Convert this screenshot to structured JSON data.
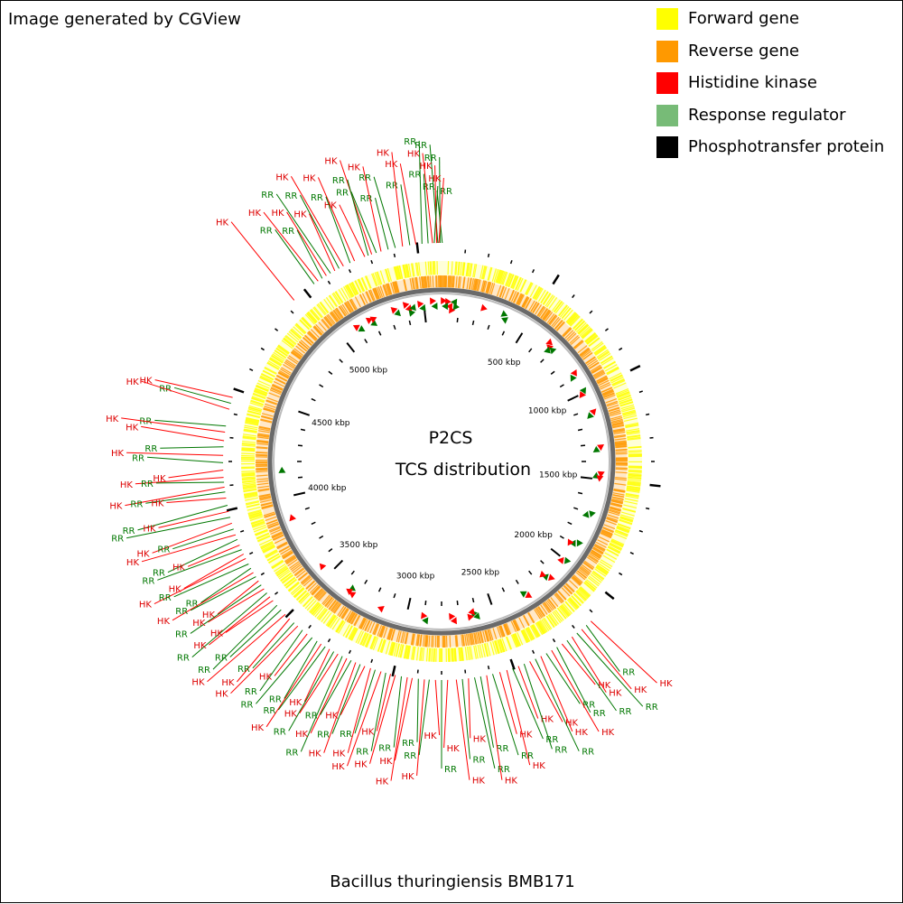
{
  "header": {
    "credit": "Image generated by CGView"
  },
  "legend": [
    {
      "label": "Forward gene",
      "color": "#ffff00"
    },
    {
      "label": "Reverse gene",
      "color": "#ff9900"
    },
    {
      "label": "Histidine kinase",
      "color": "#ff0000"
    },
    {
      "label": "Response regulator",
      "color": "#77bb77"
    },
    {
      "label": "Phosphotransfer protein",
      "color": "#000000"
    }
  ],
  "map": {
    "title_line1": "P2CS",
    "title_line2": "TCS distribution",
    "genome_length_kbp": 5600,
    "tick_labels": [
      "500 kbp",
      "1000 kbp",
      "1500 kbp",
      "2000 kbp",
      "2500 kbp",
      "3000 kbp",
      "3500 kbp",
      "4000 kbp",
      "4500 kbp",
      "5000 kbp"
    ],
    "colors": {
      "forward": "#ffff00",
      "reverse": "#ff9900",
      "hk": "#ff0000",
      "hk_text": "#dd0000",
      "rr": "#007700",
      "rr_line": "#007700",
      "backbone": "#808080"
    },
    "labels": [
      {
        "text": "RR",
        "pos_kbp": 3
      },
      {
        "text": "RR",
        "pos_kbp": 5594
      },
      {
        "text": "HK",
        "pos_kbp": 5589
      },
      {
        "text": "RR",
        "pos_kbp": 5585
      },
      {
        "text": "HK",
        "pos_kbp": 5580
      },
      {
        "text": "RR",
        "pos_kbp": 5570
      },
      {
        "text": "HK",
        "pos_kbp": 5563
      },
      {
        "text": "RR",
        "pos_kbp": 5545
      },
      {
        "text": "RR",
        "pos_kbp": 5520
      },
      {
        "text": "HK",
        "pos_kbp": 5495
      },
      {
        "text": "RR",
        "pos_kbp": 5470
      },
      {
        "text": "HK",
        "pos_kbp": 5440
      },
      {
        "text": "RR",
        "pos_kbp": 5410
      },
      {
        "text": "RR",
        "pos_kbp": 5380
      },
      {
        "text": "HK",
        "pos_kbp": 5350
      },
      {
        "text": "RR",
        "pos_kbp": 5330
      },
      {
        "text": "HK",
        "pos_kbp": 5310
      },
      {
        "text": "RR",
        "pos_kbp": 5295
      },
      {
        "text": "HK",
        "pos_kbp": 5280
      },
      {
        "text": "HK",
        "pos_kbp": 5235
      },
      {
        "text": "RR",
        "pos_kbp": 5215
      },
      {
        "text": "HK",
        "pos_kbp": 5185
      },
      {
        "text": "RR",
        "pos_kbp": 5165
      },
      {
        "text": "HK",
        "pos_kbp": 5145
      },
      {
        "text": "RR",
        "pos_kbp": 5125
      },
      {
        "text": "HK",
        "pos_kbp": 5105
      },
      {
        "text": "RR",
        "pos_kbp": 5085
      },
      {
        "text": "HK",
        "pos_kbp": 5065
      },
      {
        "text": "RR",
        "pos_kbp": 5045
      },
      {
        "text": "HK",
        "pos_kbp": 4940
      },
      {
        "text": "HK",
        "pos_kbp": 4465
      },
      {
        "text": "RR",
        "pos_kbp": 4440
      },
      {
        "text": "HK",
        "pos_kbp": 4415
      },
      {
        "text": "RR",
        "pos_kbp": 4345
      },
      {
        "text": "HK",
        "pos_kbp": 4320
      },
      {
        "text": "HK",
        "pos_kbp": 4285
      },
      {
        "text": "RR",
        "pos_kbp": 4260
      },
      {
        "text": "HK",
        "pos_kbp": 4225
      },
      {
        "text": "RR",
        "pos_kbp": 4195
      },
      {
        "text": "HK",
        "pos_kbp": 4165
      },
      {
        "text": "HK",
        "pos_kbp": 4135
      },
      {
        "text": "RR",
        "pos_kbp": 4115
      },
      {
        "text": "HK",
        "pos_kbp": 4095
      },
      {
        "text": "RR",
        "pos_kbp": 4075
      },
      {
        "text": "HK",
        "pos_kbp": 4050
      },
      {
        "text": "RR",
        "pos_kbp": 4020
      },
      {
        "text": "HK",
        "pos_kbp": 3995
      },
      {
        "text": "RR",
        "pos_kbp": 3970
      },
      {
        "text": "HK",
        "pos_kbp": 3945
      },
      {
        "text": "RR",
        "pos_kbp": 3920
      },
      {
        "text": "HK",
        "pos_kbp": 3895
      },
      {
        "text": "RR",
        "pos_kbp": 3875
      },
      {
        "text": "HK",
        "pos_kbp": 3850
      },
      {
        "text": "RR",
        "pos_kbp": 3830
      },
      {
        "text": "HK",
        "pos_kbp": 3810
      },
      {
        "text": "HK",
        "pos_kbp": 3790
      },
      {
        "text": "RR",
        "pos_kbp": 3765
      },
      {
        "text": "RR",
        "pos_kbp": 3745
      },
      {
        "text": "HK",
        "pos_kbp": 3725
      },
      {
        "text": "RR",
        "pos_kbp": 3705
      },
      {
        "text": "HK",
        "pos_kbp": 3685
      },
      {
        "text": "RR",
        "pos_kbp": 3665
      },
      {
        "text": "HK",
        "pos_kbp": 3645
      },
      {
        "text": "RR",
        "pos_kbp": 3625
      },
      {
        "text": "HK",
        "pos_kbp": 3605
      },
      {
        "text": "HK",
        "pos_kbp": 3585
      },
      {
        "text": "RR",
        "pos_kbp": 3560
      },
      {
        "text": "RR",
        "pos_kbp": 3535
      },
      {
        "text": "HK",
        "pos_kbp": 3510
      },
      {
        "text": "HK",
        "pos_kbp": 3485
      },
      {
        "text": "RR",
        "pos_kbp": 3460
      },
      {
        "text": "HK",
        "pos_kbp": 3440
      },
      {
        "text": "RR",
        "pos_kbp": 3415
      },
      {
        "text": "HK",
        "pos_kbp": 3390
      },
      {
        "text": "RR",
        "pos_kbp": 3365
      },
      {
        "text": "RR",
        "pos_kbp": 3340
      },
      {
        "text": "HK",
        "pos_kbp": 3320
      },
      {
        "text": "RR",
        "pos_kbp": 3300
      },
      {
        "text": "HK",
        "pos_kbp": 3280
      },
      {
        "text": "RR",
        "pos_kbp": 3260
      },
      {
        "text": "HK",
        "pos_kbp": 3240
      },
      {
        "text": "RR",
        "pos_kbp": 3220
      },
      {
        "text": "HK",
        "pos_kbp": 3200
      },
      {
        "text": "RR",
        "pos_kbp": 3180
      },
      {
        "text": "HK",
        "pos_kbp": 3160
      },
      {
        "text": "RR",
        "pos_kbp": 3140
      },
      {
        "text": "HK",
        "pos_kbp": 3120
      },
      {
        "text": "HK",
        "pos_kbp": 3095
      },
      {
        "text": "RR",
        "pos_kbp": 3075
      },
      {
        "text": "HK",
        "pos_kbp": 3050
      },
      {
        "text": "RR",
        "pos_kbp": 3030
      },
      {
        "text": "HK",
        "pos_kbp": 3010
      },
      {
        "text": "HK",
        "pos_kbp": 2990
      },
      {
        "text": "RR",
        "pos_kbp": 2965
      },
      {
        "text": "HK",
        "pos_kbp": 2940
      },
      {
        "text": "HK",
        "pos_kbp": 2920
      },
      {
        "text": "RR",
        "pos_kbp": 2895
      },
      {
        "text": "HK",
        "pos_kbp": 2870
      },
      {
        "text": "RR",
        "pos_kbp": 2850
      },
      {
        "text": "HK",
        "pos_kbp": 2825
      },
      {
        "text": "RR",
        "pos_kbp": 2800
      },
      {
        "text": "HK",
        "pos_kbp": 2775
      },
      {
        "text": "HK",
        "pos_kbp": 2740
      },
      {
        "text": "RR",
        "pos_kbp": 2715
      },
      {
        "text": "HK",
        "pos_kbp": 2690
      },
      {
        "text": "RR",
        "pos_kbp": 2665
      },
      {
        "text": "RR",
        "pos_kbp": 2640
      },
      {
        "text": "HK",
        "pos_kbp": 2615
      },
      {
        "text": "RR",
        "pos_kbp": 2590
      },
      {
        "text": "HK",
        "pos_kbp": 2560
      },
      {
        "text": "HK",
        "pos_kbp": 2530
      },
      {
        "text": "RR",
        "pos_kbp": 2505
      },
      {
        "text": "HK",
        "pos_kbp": 2480
      },
      {
        "text": "RR",
        "pos_kbp": 2455
      },
      {
        "text": "HK",
        "pos_kbp": 2430
      },
      {
        "text": "RR",
        "pos_kbp": 2405
      },
      {
        "text": "HK",
        "pos_kbp": 2380
      },
      {
        "text": "RR",
        "pos_kbp": 2355
      },
      {
        "text": "HK",
        "pos_kbp": 2330
      },
      {
        "text": "RR",
        "pos_kbp": 2305
      },
      {
        "text": "HK",
        "pos_kbp": 2280
      },
      {
        "text": "RR",
        "pos_kbp": 2255
      },
      {
        "text": "HK",
        "pos_kbp": 2230
      },
      {
        "text": "RR",
        "pos_kbp": 2205
      },
      {
        "text": "HK",
        "pos_kbp": 2180
      },
      {
        "text": "RR",
        "pos_kbp": 2155
      },
      {
        "text": "HK",
        "pos_kbp": 2130
      }
    ],
    "organism": "Bacillus thuringiensis BMB171"
  }
}
